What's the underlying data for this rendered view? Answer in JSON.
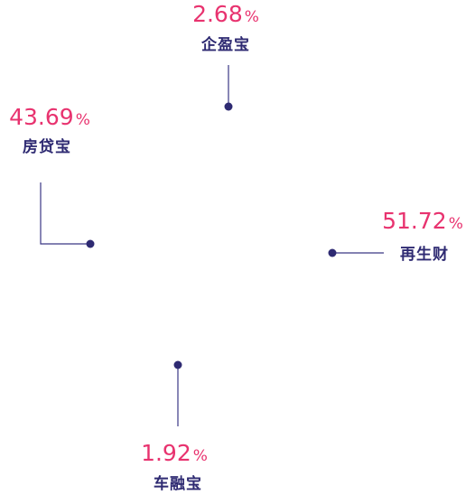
{
  "chart_data": {
    "type": "pie",
    "categories": [
      "企盈宝",
      "房贷宝",
      "再生财",
      "车融宝"
    ],
    "values": [
      2.68,
      43.69,
      51.72,
      1.92
    ],
    "value_labels": [
      "2.68",
      "43.69",
      "51.72",
      "1.92"
    ],
    "unit": "%",
    "colors": {
      "value": "#e8336f",
      "label": "#2e2a72",
      "leader": "#3b3785"
    }
  }
}
